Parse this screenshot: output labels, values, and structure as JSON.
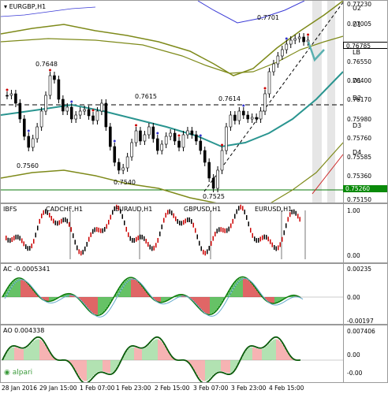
{
  "symbol_title": "EURGBP,H1",
  "colors": {
    "bull": "#009900",
    "bear": "#cc0000",
    "green_line": "#0a7a0a",
    "teal": "#2a9590",
    "olive": "#7e8a1a",
    "blue": "#3a3ad6"
  },
  "main": {
    "price_labels": [
      "0.77230",
      "0.77005",
      "0.76785",
      "0.76550",
      "0.76400",
      "0.76170",
      "0.75980",
      "0.75760",
      "0.75585",
      "0.75360",
      "0.75260",
      "0.75150"
    ],
    "current_price": "0.76785",
    "support_price": "0.75260",
    "level_labels": [
      "U2",
      "U1",
      "LB",
      "D1",
      "D2",
      "D3",
      "D4"
    ],
    "annotations": [
      "0.7701",
      "0.7648",
      "0.7615",
      "0.7614",
      "0.7560",
      "0.7540",
      "0.7525"
    ]
  },
  "corr": {
    "title": "IBFS",
    "pairs": [
      "CADCHF,H1",
      "EURAUD,H1",
      "GBPUSD,H1",
      "EURUSD,H1"
    ],
    "axis": [
      "1.00",
      "0.00"
    ]
  },
  "ac": {
    "title": "AC -0.0005341",
    "axis": [
      "0.00235",
      "0.00",
      "-0.00197"
    ]
  },
  "ao": {
    "title": "AO 0.004338",
    "axis": [
      "0.007406",
      "0.00",
      "-0.00"
    ]
  },
  "brand": "alpari",
  "time_labels": [
    "28 Jan 2016",
    "29 Jan 15:00",
    "1 Feb 07:00",
    "1 Feb 23:00",
    "2 Feb 15:00",
    "3 Feb 07:00",
    "3 Feb 23:00",
    "4 Feb 15:00"
  ]
}
